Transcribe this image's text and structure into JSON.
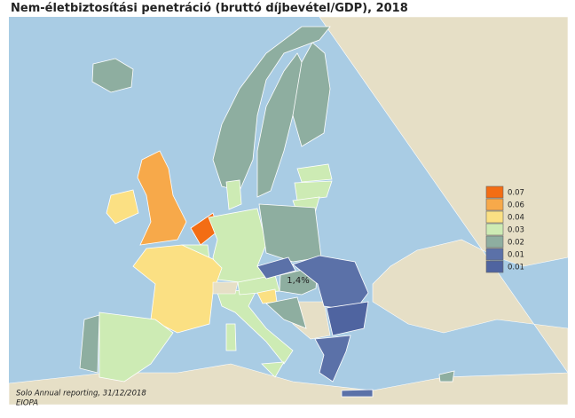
{
  "header": {
    "title": "Nem-életbiztosítási penetráció (bruttó díjbevétel/GDP), 2018"
  },
  "legend": {
    "items": [
      {
        "label": "0.07",
        "color": "#f36d14"
      },
      {
        "label": "0.06",
        "color": "#f7a94a"
      },
      {
        "label": "0.04",
        "color": "#fbe083"
      },
      {
        "label": "0.03",
        "color": "#cdebb4"
      },
      {
        "label": "0.02",
        "color": "#8eaea0"
      },
      {
        "label": "0.01",
        "color": "#5b71a8"
      },
      {
        "label": "0.01",
        "color": "#4f64a0"
      }
    ]
  },
  "annotation": "1,4%",
  "source": [
    "Solo Annual reporting, 31/12/2018",
    "EIOPA"
  ]
}
